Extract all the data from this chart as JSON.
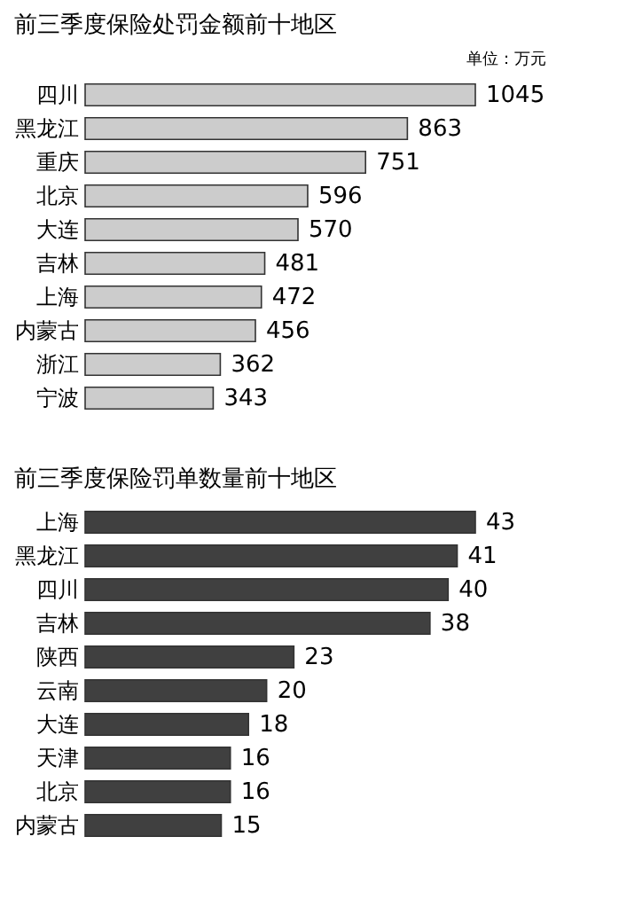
{
  "chart_data": [
    {
      "type": "bar",
      "orientation": "horizontal",
      "title": "前三季度保险处罚金额前十地区",
      "annotations": [
        "单位：万元"
      ],
      "categories": [
        "四川",
        "黑龙江",
        "重庆",
        "北京",
        "大连",
        "吉林",
        "上海",
        "内蒙古",
        "浙江",
        "宁波"
      ],
      "values": [
        1045,
        863,
        751,
        596,
        570,
        481,
        472,
        456,
        362,
        343
      ],
      "color": "#cccccc",
      "data_labels": true
    },
    {
      "type": "bar",
      "orientation": "horizontal",
      "title": "前三季度保险罚单数量前十地区",
      "categories": [
        "上海",
        "黑龙江",
        "四川",
        "吉林",
        "陕西",
        "云南",
        "大连",
        "天津",
        "北京",
        "内蒙古"
      ],
      "values": [
        43,
        41,
        40,
        38,
        23,
        20,
        18,
        16,
        16,
        15
      ],
      "color": "#404040",
      "data_labels": true
    }
  ]
}
